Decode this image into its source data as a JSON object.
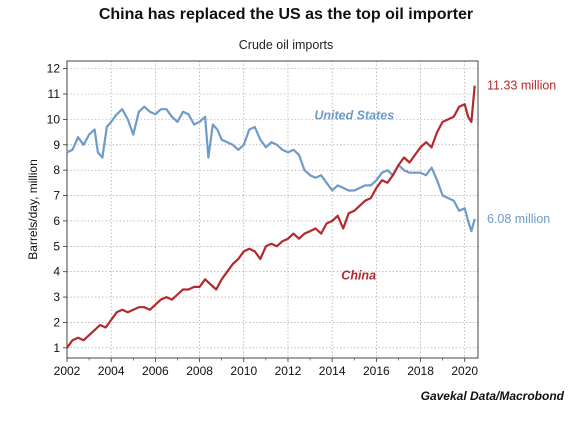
{
  "header": {
    "title": "China has replaced the US as the top oil importer",
    "subtitle": "Crude oil imports",
    "source": "Gavekal Data/Macrobond"
  },
  "chart_data": {
    "type": "line",
    "title": "China has replaced the US as the top oil importer",
    "subtitle": "Crude oil imports",
    "xlabel": "",
    "ylabel": "Barrels/day, million",
    "xlim": [
      2002,
      2020.6
    ],
    "ylim": [
      0.6,
      12.3
    ],
    "grid": true,
    "x_ticks": [
      2002,
      2004,
      2006,
      2008,
      2010,
      2012,
      2014,
      2016,
      2018,
      2020
    ],
    "x_tick_labels": [
      "2002",
      "2004",
      "2006",
      "2008",
      "2010",
      "2012",
      "2014",
      "2016",
      "2018",
      "2020"
    ],
    "y_ticks": [
      1,
      2,
      3,
      4,
      5,
      6,
      7,
      8,
      9,
      10,
      11,
      12
    ],
    "y_tick_labels": [
      "1",
      "2",
      "3",
      "4",
      "5",
      "6",
      "7",
      "8",
      "9",
      "10",
      "11",
      "12"
    ],
    "colors": {
      "china": "#b5292c",
      "us": "#6f9bc9"
    },
    "series": [
      {
        "name": "United States",
        "color": "#6f9bc9",
        "end_label": "6.08 million",
        "points": [
          [
            2002.0,
            8.7
          ],
          [
            2002.25,
            8.8
          ],
          [
            2002.5,
            9.3
          ],
          [
            2002.75,
            9.0
          ],
          [
            2003.0,
            9.4
          ],
          [
            2003.25,
            9.6
          ],
          [
            2003.4,
            8.7
          ],
          [
            2003.6,
            8.5
          ],
          [
            2003.8,
            9.7
          ],
          [
            2004.0,
            9.9
          ],
          [
            2004.25,
            10.2
          ],
          [
            2004.5,
            10.4
          ],
          [
            2004.75,
            10.0
          ],
          [
            2005.0,
            9.4
          ],
          [
            2005.25,
            10.3
          ],
          [
            2005.5,
            10.5
          ],
          [
            2005.75,
            10.3
          ],
          [
            2006.0,
            10.2
          ],
          [
            2006.25,
            10.4
          ],
          [
            2006.5,
            10.4
          ],
          [
            2006.75,
            10.1
          ],
          [
            2007.0,
            9.9
          ],
          [
            2007.25,
            10.3
          ],
          [
            2007.5,
            10.2
          ],
          [
            2007.75,
            9.8
          ],
          [
            2008.0,
            9.9
          ],
          [
            2008.25,
            10.1
          ],
          [
            2008.4,
            8.5
          ],
          [
            2008.6,
            9.8
          ],
          [
            2008.8,
            9.6
          ],
          [
            2009.0,
            9.2
          ],
          [
            2009.25,
            9.1
          ],
          [
            2009.5,
            9.0
          ],
          [
            2009.75,
            8.8
          ],
          [
            2010.0,
            9.0
          ],
          [
            2010.25,
            9.6
          ],
          [
            2010.5,
            9.7
          ],
          [
            2010.75,
            9.2
          ],
          [
            2011.0,
            8.9
          ],
          [
            2011.25,
            9.1
          ],
          [
            2011.5,
            9.0
          ],
          [
            2011.75,
            8.8
          ],
          [
            2012.0,
            8.7
          ],
          [
            2012.25,
            8.8
          ],
          [
            2012.5,
            8.6
          ],
          [
            2012.75,
            8.0
          ],
          [
            2013.0,
            7.8
          ],
          [
            2013.25,
            7.7
          ],
          [
            2013.5,
            7.8
          ],
          [
            2013.75,
            7.5
          ],
          [
            2014.0,
            7.2
          ],
          [
            2014.25,
            7.4
          ],
          [
            2014.5,
            7.3
          ],
          [
            2014.75,
            7.2
          ],
          [
            2015.0,
            7.2
          ],
          [
            2015.25,
            7.3
          ],
          [
            2015.5,
            7.4
          ],
          [
            2015.75,
            7.4
          ],
          [
            2016.0,
            7.6
          ],
          [
            2016.25,
            7.9
          ],
          [
            2016.5,
            8.0
          ],
          [
            2016.75,
            7.8
          ],
          [
            2017.0,
            8.2
          ],
          [
            2017.25,
            8.0
          ],
          [
            2017.5,
            7.9
          ],
          [
            2017.75,
            7.9
          ],
          [
            2018.0,
            7.9
          ],
          [
            2018.25,
            7.8
          ],
          [
            2018.5,
            8.1
          ],
          [
            2018.75,
            7.6
          ],
          [
            2019.0,
            7.0
          ],
          [
            2019.25,
            6.9
          ],
          [
            2019.5,
            6.8
          ],
          [
            2019.75,
            6.4
          ],
          [
            2020.0,
            6.5
          ],
          [
            2020.15,
            6.0
          ],
          [
            2020.3,
            5.6
          ],
          [
            2020.45,
            6.08
          ]
        ]
      },
      {
        "name": "China",
        "color": "#b5292c",
        "end_label": "11.33 million",
        "points": [
          [
            2002.0,
            1.0
          ],
          [
            2002.25,
            1.3
          ],
          [
            2002.5,
            1.4
          ],
          [
            2002.75,
            1.3
          ],
          [
            2003.0,
            1.5
          ],
          [
            2003.25,
            1.7
          ],
          [
            2003.5,
            1.9
          ],
          [
            2003.75,
            1.8
          ],
          [
            2004.0,
            2.1
          ],
          [
            2004.25,
            2.4
          ],
          [
            2004.5,
            2.5
          ],
          [
            2004.75,
            2.4
          ],
          [
            2005.0,
            2.5
          ],
          [
            2005.25,
            2.6
          ],
          [
            2005.5,
            2.6
          ],
          [
            2005.75,
            2.5
          ],
          [
            2006.0,
            2.7
          ],
          [
            2006.25,
            2.9
          ],
          [
            2006.5,
            3.0
          ],
          [
            2006.75,
            2.9
          ],
          [
            2007.0,
            3.1
          ],
          [
            2007.25,
            3.3
          ],
          [
            2007.5,
            3.3
          ],
          [
            2007.75,
            3.4
          ],
          [
            2008.0,
            3.4
          ],
          [
            2008.25,
            3.7
          ],
          [
            2008.5,
            3.5
          ],
          [
            2008.75,
            3.3
          ],
          [
            2009.0,
            3.7
          ],
          [
            2009.25,
            4.0
          ],
          [
            2009.5,
            4.3
          ],
          [
            2009.75,
            4.5
          ],
          [
            2010.0,
            4.8
          ],
          [
            2010.25,
            4.9
          ],
          [
            2010.5,
            4.8
          ],
          [
            2010.75,
            4.5
          ],
          [
            2011.0,
            5.0
          ],
          [
            2011.25,
            5.1
          ],
          [
            2011.5,
            5.0
          ],
          [
            2011.75,
            5.2
          ],
          [
            2012.0,
            5.3
          ],
          [
            2012.25,
            5.5
          ],
          [
            2012.5,
            5.3
          ],
          [
            2012.75,
            5.5
          ],
          [
            2013.0,
            5.6
          ],
          [
            2013.25,
            5.7
          ],
          [
            2013.5,
            5.5
          ],
          [
            2013.75,
            5.9
          ],
          [
            2014.0,
            6.0
          ],
          [
            2014.25,
            6.2
          ],
          [
            2014.5,
            5.7
          ],
          [
            2014.75,
            6.3
          ],
          [
            2015.0,
            6.4
          ],
          [
            2015.25,
            6.6
          ],
          [
            2015.5,
            6.8
          ],
          [
            2015.75,
            6.9
          ],
          [
            2016.0,
            7.3
          ],
          [
            2016.25,
            7.6
          ],
          [
            2016.5,
            7.5
          ],
          [
            2016.75,
            7.8
          ],
          [
            2017.0,
            8.2
          ],
          [
            2017.25,
            8.5
          ],
          [
            2017.5,
            8.3
          ],
          [
            2017.75,
            8.6
          ],
          [
            2018.0,
            8.9
          ],
          [
            2018.25,
            9.1
          ],
          [
            2018.5,
            8.9
          ],
          [
            2018.75,
            9.5
          ],
          [
            2019.0,
            9.9
          ],
          [
            2019.25,
            10.0
          ],
          [
            2019.5,
            10.1
          ],
          [
            2019.75,
            10.5
          ],
          [
            2020.0,
            10.6
          ],
          [
            2020.15,
            10.1
          ],
          [
            2020.3,
            9.9
          ],
          [
            2020.45,
            11.33
          ]
        ]
      }
    ],
    "annotations": [
      {
        "text": "United States",
        "x": 2015.0,
        "y": 10.0,
        "series": "United States"
      },
      {
        "text": "China",
        "x": 2015.2,
        "y": 3.7,
        "series": "China"
      }
    ]
  }
}
